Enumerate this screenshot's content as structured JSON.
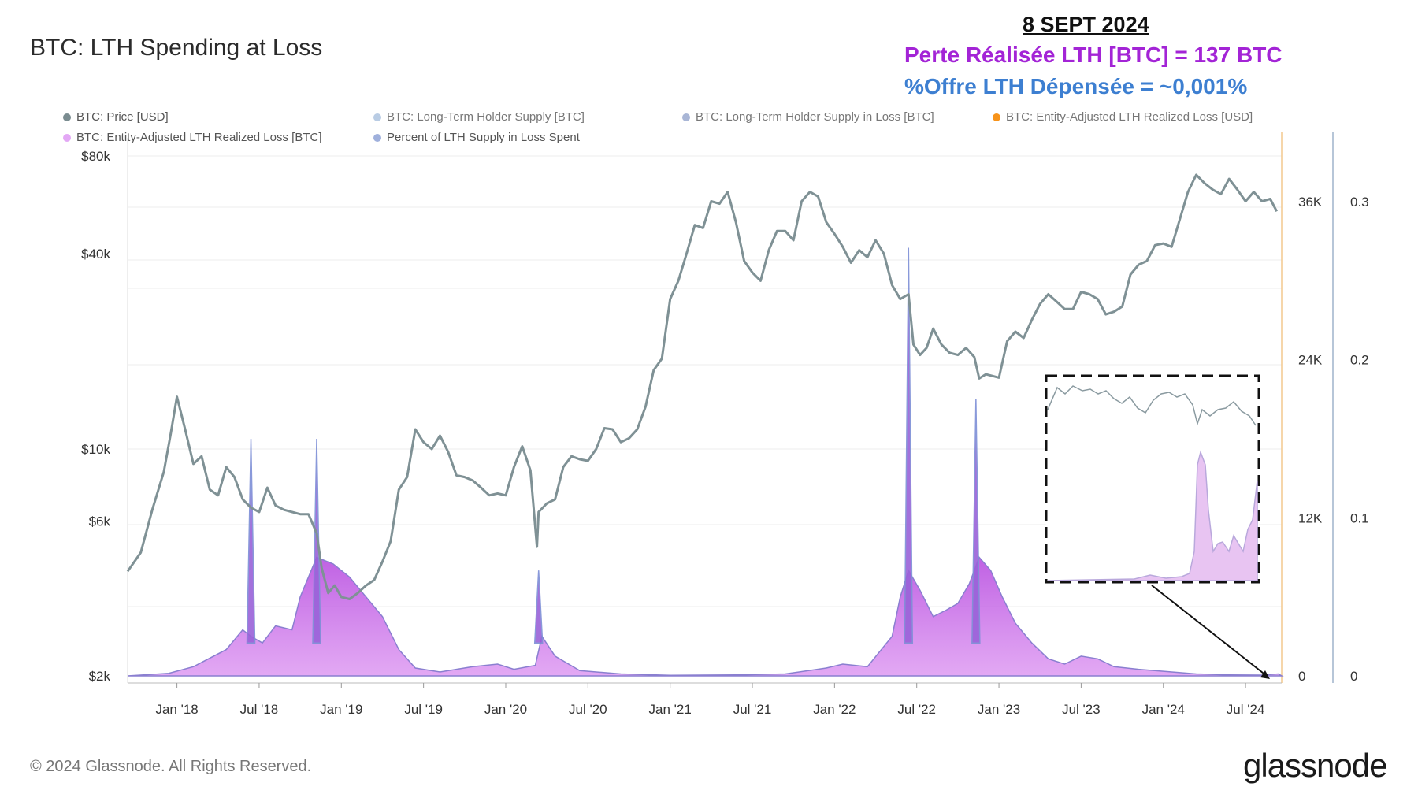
{
  "chart_data": {
    "type": "line",
    "title": "BTC: LTH Spending at Loss",
    "annotation": {
      "date": "8 SEPT 2024",
      "line1": "Perte Réalisée LTH [BTC] = 137 BTC",
      "line2": "%Offre LTH Dépensée = ~0,001%"
    },
    "legend": [
      {
        "label": "BTC: Price [USD]",
        "color": "#7a8c90",
        "active": true
      },
      {
        "label": "BTC: Long-Term Holder Supply [BTC]",
        "color": "#b9cce4",
        "active": false
      },
      {
        "label": "BTC: Long-Term Holder Supply in Loss [BTC]",
        "color": "#a9b6d6",
        "active": false
      },
      {
        "label": "BTC: Entity-Adjusted LTH Realized Loss [USD]",
        "color": "#f7931a",
        "active": false
      },
      {
        "label": "BTC: Entity-Adjusted LTH Realized Loss [BTC]",
        "color": "#e3a8f5",
        "active": true
      },
      {
        "label": "Percent of LTH Supply in Loss Spent",
        "color": "#9fb0dc",
        "active": true
      }
    ],
    "x_ticks": [
      "Jan '18",
      "Jul '18",
      "Jan '19",
      "Jul '19",
      "Jan '20",
      "Jul '20",
      "Jan '21",
      "Jul '21",
      "Jan '22",
      "Jul '22",
      "Jan '23",
      "Jul '23",
      "Jan '24",
      "Jul '24"
    ],
    "y_left_ticks": [
      "$80k",
      "$40k",
      "$10k",
      "$6k",
      "$2k"
    ],
    "y_left_values": [
      80000,
      40000,
      10000,
      6000,
      2000
    ],
    "y_left_scale": "log",
    "y_mid_ticks": [
      "36K",
      "24K",
      "12K",
      "0"
    ],
    "y_mid_values": [
      36000,
      24000,
      12000,
      0
    ],
    "y_right_ticks": [
      "0.3",
      "0.2",
      "0.1",
      "0"
    ],
    "y_right_values": [
      0.3,
      0.2,
      0.1,
      0
    ],
    "x_range": [
      2017.7,
      2024.72
    ],
    "series": [
      {
        "name": "BTC: Price [USD]",
        "axis": "left",
        "x": [
          2017.7,
          2017.78,
          2017.85,
          2017.92,
          2017.96,
          2018.0,
          2018.05,
          2018.1,
          2018.15,
          2018.2,
          2018.25,
          2018.3,
          2018.35,
          2018.4,
          2018.45,
          2018.5,
          2018.55,
          2018.6,
          2018.65,
          2018.7,
          2018.75,
          2018.8,
          2018.85,
          2018.88,
          2018.92,
          2018.96,
          2019.0,
          2019.05,
          2019.1,
          2019.15,
          2019.2,
          2019.25,
          2019.3,
          2019.35,
          2019.4,
          2019.45,
          2019.5,
          2019.55,
          2019.6,
          2019.65,
          2019.7,
          2019.75,
          2019.8,
          2019.85,
          2019.9,
          2019.95,
          2020.0,
          2020.05,
          2020.1,
          2020.15,
          2020.19,
          2020.2,
          2020.25,
          2020.3,
          2020.35,
          2020.4,
          2020.45,
          2020.5,
          2020.55,
          2020.6,
          2020.65,
          2020.7,
          2020.75,
          2020.8,
          2020.85,
          2020.9,
          2020.95,
          2021.0,
          2021.05,
          2021.1,
          2021.15,
          2021.2,
          2021.25,
          2021.3,
          2021.35,
          2021.4,
          2021.45,
          2021.5,
          2021.55,
          2021.6,
          2021.65,
          2021.7,
          2021.75,
          2021.8,
          2021.85,
          2021.9,
          2021.95,
          2022.0,
          2022.05,
          2022.1,
          2022.15,
          2022.2,
          2022.25,
          2022.3,
          2022.35,
          2022.4,
          2022.45,
          2022.48,
          2022.52,
          2022.56,
          2022.6,
          2022.65,
          2022.7,
          2022.75,
          2022.8,
          2022.85,
          2022.88,
          2022.92,
          2022.96,
          2023.0,
          2023.05,
          2023.1,
          2023.15,
          2023.2,
          2023.25,
          2023.3,
          2023.35,
          2023.4,
          2023.45,
          2023.5,
          2023.55,
          2023.6,
          2023.65,
          2023.7,
          2023.75,
          2023.8,
          2023.85,
          2023.9,
          2023.95,
          2024.0,
          2024.05,
          2024.1,
          2024.15,
          2024.2,
          2024.25,
          2024.3,
          2024.35,
          2024.4,
          2024.45,
          2024.5,
          2024.55,
          2024.6,
          2024.65,
          2024.69
        ],
        "values": [
          4200,
          4800,
          6500,
          8500,
          11000,
          14500,
          11500,
          9000,
          9500,
          7500,
          7200,
          8800,
          8200,
          7000,
          6600,
          6400,
          7600,
          6700,
          6500,
          6400,
          6300,
          6300,
          5500,
          4300,
          3600,
          3800,
          3500,
          3450,
          3600,
          3800,
          3950,
          4500,
          5200,
          7500,
          8200,
          11500,
          10500,
          10000,
          11000,
          9800,
          8300,
          8200,
          8000,
          7600,
          7200,
          7300,
          7200,
          8800,
          10200,
          8600,
          5000,
          6400,
          6800,
          7000,
          8800,
          9500,
          9300,
          9200,
          10000,
          11600,
          11500,
          10500,
          10800,
          11500,
          13500,
          17500,
          19000,
          29000,
          33000,
          40000,
          49000,
          48000,
          58000,
          57000,
          62000,
          50000,
          38000,
          35000,
          33000,
          41000,
          47000,
          47000,
          44000,
          58000,
          62000,
          60000,
          50000,
          46000,
          42000,
          37500,
          41000,
          39000,
          44000,
          40000,
          32000,
          29000,
          30000,
          21000,
          19500,
          20500,
          23500,
          21000,
          19800,
          19500,
          20500,
          19200,
          16500,
          17000,
          16800,
          16600,
          21500,
          23000,
          22000,
          25000,
          28000,
          30000,
          28500,
          27000,
          27000,
          30500,
          30000,
          29000,
          26000,
          26500,
          27500,
          34500,
          37000,
          38000,
          42500,
          43000,
          42000,
          51000,
          62000,
          70000,
          66000,
          63000,
          61000,
          68000,
          63000,
          58000,
          62000,
          58000,
          59000,
          54000
        ]
      }
    ],
    "loss_spikes_btc": [
      {
        "x": 2018.45,
        "value": 18000
      },
      {
        "x": 2018.85,
        "value": 18000
      },
      {
        "x": 2020.2,
        "value": 8000
      },
      {
        "x": 2022.45,
        "value": 32500
      },
      {
        "x": 2022.86,
        "value": 21000
      }
    ]
  },
  "inset": {
    "present": true
  },
  "footer": "© 2024 Glassnode. All Rights Reserved.",
  "logo": "glassnode"
}
